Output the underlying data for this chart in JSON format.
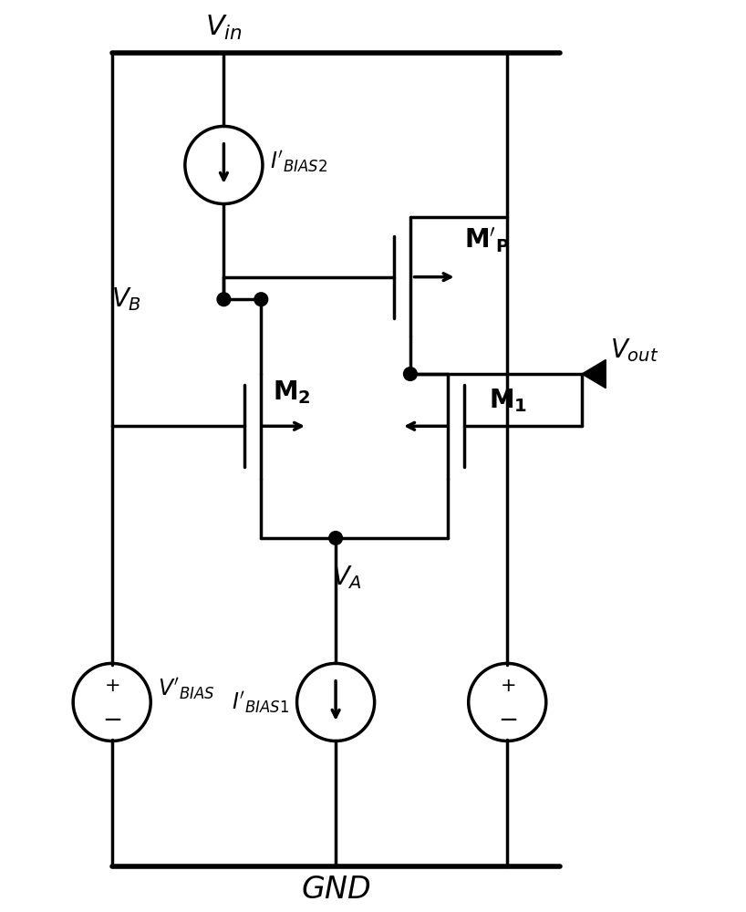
{
  "bg_color": "#ffffff",
  "line_color": "#000000",
  "line_width": 2.5,
  "fig_width": 8.18,
  "fig_height": 10.0
}
